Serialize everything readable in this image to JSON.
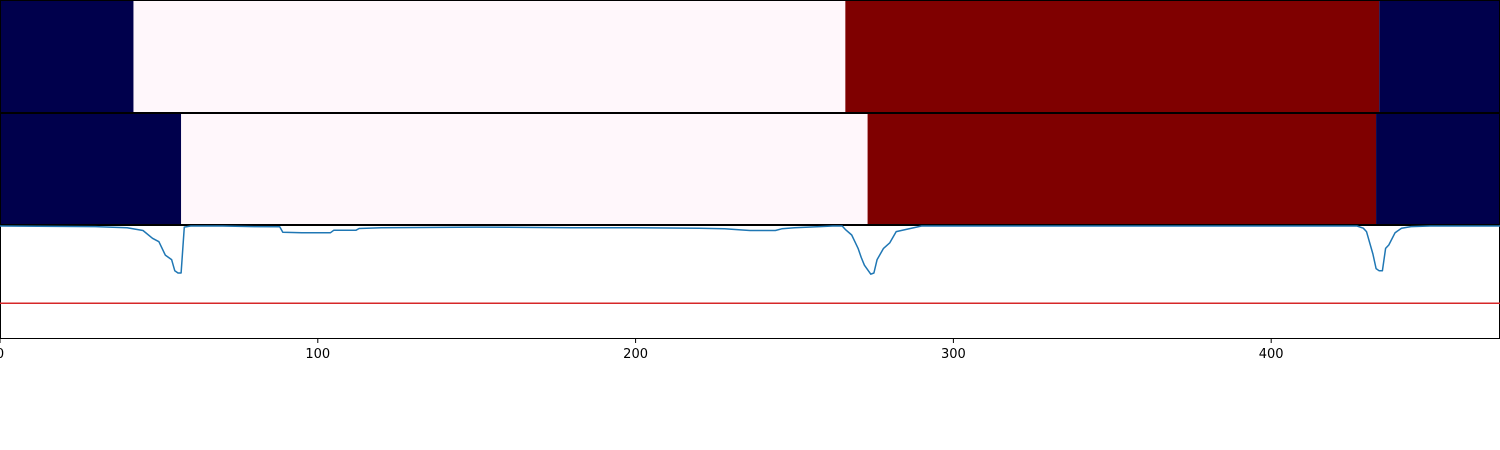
{
  "chart_data": {
    "type": "line",
    "xlim": [
      0,
      472
    ],
    "x_ticks": [
      0,
      100,
      200,
      300,
      400
    ],
    "x_tick_labels": [
      "0",
      "100",
      "200",
      "300",
      "400"
    ],
    "grid": false,
    "segment_rows": [
      {
        "segments": [
          {
            "start": 0,
            "end": 42,
            "color": "#00004c"
          },
          {
            "start": 42,
            "end": 266,
            "color": "#fff7fb"
          },
          {
            "start": 266,
            "end": 434,
            "color": "#7f0000"
          },
          {
            "start": 434,
            "end": 472,
            "color": "#00004c"
          }
        ]
      },
      {
        "segments": [
          {
            "start": 0,
            "end": 57,
            "color": "#00004c"
          },
          {
            "start": 57,
            "end": 273,
            "color": "#fff7fb"
          },
          {
            "start": 273,
            "end": 433,
            "color": "#7f0000"
          },
          {
            "start": 433,
            "end": 472,
            "color": "#00004c"
          }
        ]
      }
    ],
    "line_panel": {
      "ylim": [
        0,
        1
      ],
      "threshold": {
        "value": 0.31,
        "color": "#d62728"
      },
      "series": [
        {
          "color": "#1f77b4",
          "x": [
            0,
            30,
            40,
            45,
            48,
            50,
            52,
            54,
            55,
            56,
            57,
            58,
            60,
            70,
            80,
            88,
            89,
            95,
            96,
            100,
            104,
            105,
            110,
            112,
            113,
            120,
            150,
            180,
            200,
            220,
            228,
            233,
            236,
            240,
            242,
            244,
            246,
            250,
            258,
            262,
            265,
            266,
            268,
            269,
            270,
            271,
            272,
            273,
            274,
            275,
            276,
            278,
            280,
            282,
            290,
            320,
            350,
            380,
            400,
            420,
            427,
            429,
            430,
            431,
            432,
            433,
            434,
            435,
            436,
            437,
            439,
            441,
            444,
            450,
            472
          ],
          "y": [
            1.0,
            0.995,
            0.985,
            0.96,
            0.89,
            0.86,
            0.74,
            0.7,
            0.6,
            0.58,
            0.58,
            0.99,
            1.0,
            1.0,
            0.995,
            0.994,
            0.945,
            0.94,
            0.94,
            0.94,
            0.94,
            0.962,
            0.962,
            0.962,
            0.978,
            0.985,
            0.99,
            0.985,
            0.985,
            0.98,
            0.975,
            0.965,
            0.96,
            0.96,
            0.96,
            0.96,
            0.975,
            0.985,
            0.995,
            1.0,
            1.0,
            0.97,
            0.92,
            0.86,
            0.8,
            0.72,
            0.65,
            0.61,
            0.57,
            0.58,
            0.7,
            0.8,
            0.85,
            0.95,
            1.0,
            1.0,
            1.0,
            1.0,
            1.0,
            1.0,
            1.0,
            0.98,
            0.95,
            0.85,
            0.75,
            0.62,
            0.6,
            0.6,
            0.8,
            0.83,
            0.94,
            0.98,
            0.995,
            1.0,
            1.0
          ]
        }
      ]
    }
  }
}
